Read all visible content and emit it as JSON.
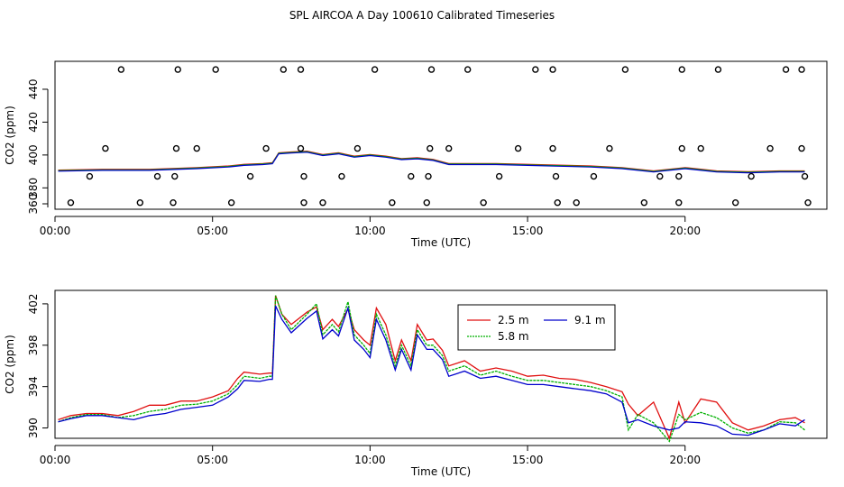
{
  "title": "SPL AIRCOA A  Day 100610  Calibrated Timeseries",
  "colors": {
    "series_a": "#e01010",
    "series_b": "#00b000",
    "series_c": "#0000cc",
    "axis": "#000000"
  },
  "chart_data": [
    {
      "type": "scatter",
      "xlabel": "Time (UTC)",
      "ylabel": "CO2 (ppm)",
      "xlim": [
        0,
        24.5
      ],
      "ylim": [
        367,
        457
      ],
      "xticks": [
        0,
        5,
        10,
        15,
        20
      ],
      "xtick_labels": [
        "00:00",
        "05:00",
        "10:00",
        "15:00",
        "20:00"
      ],
      "yticks": [
        360,
        380,
        400,
        420,
        440
      ],
      "ytick_labels": [
        "360",
        "380",
        "400",
        "420",
        "440"
      ],
      "points": [
        {
          "x": 2.1,
          "y": 452
        },
        {
          "x": 3.9,
          "y": 452
        },
        {
          "x": 5.1,
          "y": 452
        },
        {
          "x": 7.25,
          "y": 452
        },
        {
          "x": 7.8,
          "y": 452
        },
        {
          "x": 10.15,
          "y": 452
        },
        {
          "x": 11.95,
          "y": 452
        },
        {
          "x": 13.1,
          "y": 452
        },
        {
          "x": 15.25,
          "y": 452
        },
        {
          "x": 15.8,
          "y": 452
        },
        {
          "x": 18.1,
          "y": 452
        },
        {
          "x": 19.9,
          "y": 452
        },
        {
          "x": 21.05,
          "y": 452
        },
        {
          "x": 23.2,
          "y": 452
        },
        {
          "x": 23.7,
          "y": 452
        },
        {
          "x": 1.6,
          "y": 404
        },
        {
          "x": 3.85,
          "y": 404
        },
        {
          "x": 4.5,
          "y": 404
        },
        {
          "x": 6.7,
          "y": 404
        },
        {
          "x": 7.8,
          "y": 404
        },
        {
          "x": 9.6,
          "y": 404
        },
        {
          "x": 11.9,
          "y": 404
        },
        {
          "x": 12.5,
          "y": 404
        },
        {
          "x": 14.7,
          "y": 404
        },
        {
          "x": 15.8,
          "y": 404
        },
        {
          "x": 17.6,
          "y": 404
        },
        {
          "x": 19.9,
          "y": 404
        },
        {
          "x": 20.5,
          "y": 404
        },
        {
          "x": 22.7,
          "y": 404
        },
        {
          "x": 23.7,
          "y": 404
        },
        {
          "x": 1.1,
          "y": 387
        },
        {
          "x": 3.25,
          "y": 387
        },
        {
          "x": 3.8,
          "y": 387
        },
        {
          "x": 6.2,
          "y": 387
        },
        {
          "x": 7.9,
          "y": 387
        },
        {
          "x": 9.1,
          "y": 387
        },
        {
          "x": 11.3,
          "y": 387
        },
        {
          "x": 11.85,
          "y": 387
        },
        {
          "x": 14.1,
          "y": 387
        },
        {
          "x": 15.9,
          "y": 387
        },
        {
          "x": 17.1,
          "y": 387
        },
        {
          "x": 19.2,
          "y": 387
        },
        {
          "x": 19.8,
          "y": 387
        },
        {
          "x": 22.1,
          "y": 387
        },
        {
          "x": 23.8,
          "y": 387
        },
        {
          "x": 0.5,
          "y": 371
        },
        {
          "x": 2.7,
          "y": 371
        },
        {
          "x": 3.75,
          "y": 371
        },
        {
          "x": 5.6,
          "y": 371
        },
        {
          "x": 7.9,
          "y": 371
        },
        {
          "x": 8.5,
          "y": 371
        },
        {
          "x": 10.7,
          "y": 371
        },
        {
          "x": 11.8,
          "y": 371
        },
        {
          "x": 13.6,
          "y": 371
        },
        {
          "x": 15.95,
          "y": 371
        },
        {
          "x": 16.55,
          "y": 371
        },
        {
          "x": 18.7,
          "y": 371
        },
        {
          "x": 19.8,
          "y": 371
        },
        {
          "x": 21.6,
          "y": 371
        },
        {
          "x": 23.9,
          "y": 371
        }
      ],
      "overlay_line": {
        "x": [
          0.1,
          1.5,
          3,
          4.5,
          5.5,
          6,
          6.6,
          6.9,
          7.1,
          7.5,
          8,
          8.5,
          9,
          9.5,
          10,
          10.5,
          11,
          11.5,
          12,
          12.5,
          13,
          14,
          15,
          16,
          17,
          18,
          19,
          20,
          21,
          22,
          23,
          23.8
        ],
        "y": [
          390.5,
          391,
          391,
          392,
          393,
          394,
          394.5,
          395,
          401,
          401.5,
          402,
          400,
          401,
          399,
          400,
          399,
          397.5,
          398,
          397,
          394.5,
          394.5,
          394.5,
          394,
          393.5,
          393,
          392,
          390,
          392,
          390,
          389.5,
          390,
          390
        ]
      }
    },
    {
      "type": "line",
      "xlabel": "Time (UTC)",
      "ylabel": "CO2 (ppm)",
      "xlim": [
        0,
        24.5
      ],
      "ylim": [
        389,
        403.3
      ],
      "xticks": [
        0,
        5,
        10,
        15,
        20
      ],
      "xtick_labels": [
        "00:00",
        "05:00",
        "10:00",
        "15:00",
        "20:00"
      ],
      "yticks": [
        390,
        394,
        398,
        402
      ],
      "ytick_labels": [
        "390",
        "394",
        "398",
        "402"
      ],
      "legend_position": "top-right",
      "x": [
        0.1,
        0.5,
        1,
        1.5,
        2,
        2.5,
        3,
        3.5,
        4,
        4.5,
        5,
        5.5,
        5.8,
        6,
        6.5,
        6.8,
        6.9,
        7,
        7.2,
        7.5,
        8,
        8.3,
        8.5,
        8.8,
        9,
        9.3,
        9.5,
        9.8,
        10,
        10.2,
        10.5,
        10.8,
        11,
        11.3,
        11.5,
        11.8,
        12,
        12.3,
        12.5,
        13,
        13.5,
        14,
        14.5,
        15,
        15.5,
        16,
        16.5,
        17,
        17.5,
        18,
        18.2,
        18.5,
        19,
        19.5,
        19.8,
        20,
        20.5,
        21,
        21.5,
        22,
        22.5,
        23,
        23.5,
        23.8
      ],
      "series": [
        {
          "name": "2.5 m",
          "values": [
            390.8,
            391.2,
            391.4,
            391.4,
            391.2,
            391.6,
            392.2,
            392.2,
            392.6,
            392.6,
            393,
            393.6,
            394.8,
            395.4,
            395.2,
            395.3,
            395.3,
            402.8,
            401,
            400,
            401.2,
            401.7,
            399.5,
            400.5,
            399.8,
            401.5,
            399.5,
            398.5,
            398,
            401.6,
            400,
            396.5,
            398.5,
            396.5,
            400,
            398.5,
            398.6,
            397.5,
            396,
            396.5,
            395.5,
            395.8,
            395.5,
            395,
            395.1,
            394.8,
            394.7,
            394.4,
            394,
            393.5,
            392.3,
            391.2,
            392.5,
            389,
            392.5,
            390.5,
            392.8,
            392.5,
            390.5,
            389.8,
            390.2,
            390.8,
            391,
            390.5
          ]
        },
        {
          "name": "5.8 m",
          "values": [
            390.6,
            391,
            391.3,
            391.3,
            391,
            391.2,
            391.6,
            391.8,
            392.2,
            392.3,
            392.6,
            393.3,
            394.2,
            395,
            394.8,
            395,
            395,
            402.8,
            401,
            399.5,
            401,
            402,
            399,
            400,
            399.3,
            402.2,
            399,
            398,
            397.2,
            401,
            399,
            396,
            398,
            396,
            399.5,
            398,
            398,
            397,
            395.5,
            396,
            395.1,
            395.5,
            395,
            394.6,
            394.6,
            394.4,
            394.2,
            394,
            393.6,
            393,
            389.8,
            391.3,
            390.5,
            388.7,
            391.3,
            390.8,
            391.5,
            391,
            390,
            389.5,
            389.8,
            390.6,
            390.5,
            389.8
          ]
        },
        {
          "name": "9.1 m",
          "values": [
            390.6,
            390.9,
            391.2,
            391.2,
            391,
            390.8,
            391.2,
            391.4,
            391.8,
            392,
            392.2,
            393,
            393.8,
            394.6,
            394.5,
            394.7,
            394.7,
            401.8,
            400.5,
            399.2,
            400.6,
            401.3,
            398.6,
            399.5,
            398.9,
            401.6,
            398.5,
            397.6,
            396.8,
            400.5,
            398.5,
            395.6,
            397.6,
            395.6,
            399,
            397.6,
            397.6,
            396.6,
            395,
            395.5,
            394.8,
            395,
            394.6,
            394.2,
            394.2,
            394,
            393.8,
            393.6,
            393.3,
            392.5,
            390.5,
            390.8,
            390.2,
            389.8,
            390,
            390.6,
            390.5,
            390.2,
            389.4,
            389.3,
            389.8,
            390.4,
            390.2,
            390.8
          ]
        }
      ]
    }
  ]
}
